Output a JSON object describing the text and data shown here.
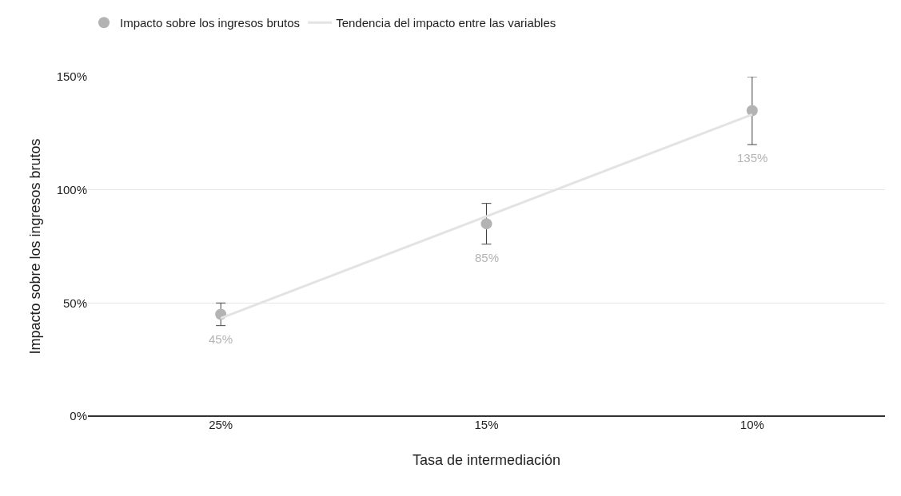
{
  "chart_data": {
    "type": "scatter",
    "categories": [
      "25%",
      "15%",
      "10%"
    ],
    "xlabel": "Tasa de intermediación",
    "ylabel": "Impacto sobre los ingresos brutos",
    "series": [
      {
        "name": "Impacto sobre los ingresos brutos",
        "marker": "circle",
        "color": "#b3b3b3",
        "values": [
          45,
          85,
          135
        ],
        "errors": [
          5,
          9,
          15
        ],
        "value_labels": [
          "45%",
          "85%",
          "135%"
        ]
      },
      {
        "name": "Tendencia del impacto entre las variables",
        "type": "line",
        "color": "#e3e3e3",
        "values": [
          43.3,
          88.3,
          133.3
        ]
      }
    ],
    "ylim": [
      0,
      150
    ],
    "yticks": [
      {
        "value": 0,
        "label": "0%"
      },
      {
        "value": 50,
        "label": "50%"
      },
      {
        "value": 100,
        "label": "100%"
      },
      {
        "value": 150,
        "label": "150%"
      }
    ],
    "grid": "y",
    "legend": "top left"
  }
}
